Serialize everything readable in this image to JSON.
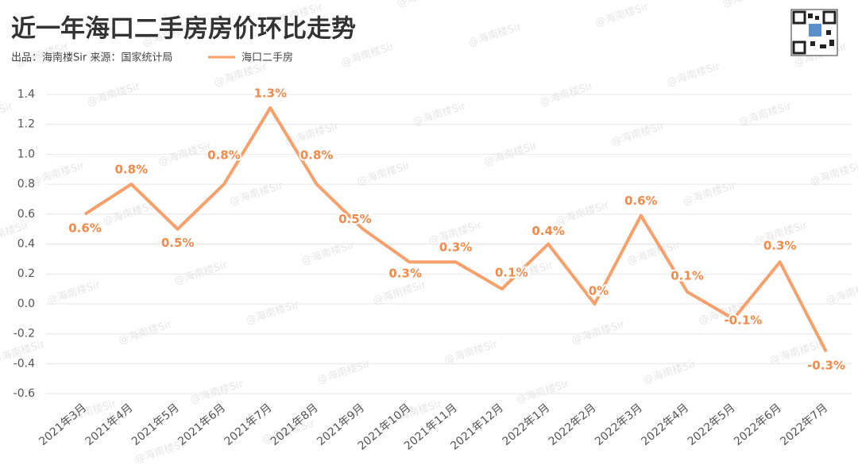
{
  "chart_data": {
    "type": "line",
    "title": "近一年海口二手房房价环比走势",
    "subtitle": "出品：海南楼Sir  来源：国家统计局",
    "watermark": "@海南楼Sir",
    "categories": [
      "2021年3月",
      "2021年4月",
      "2021年5月",
      "2021年6月",
      "2021年7月",
      "2021年8月",
      "2021年9月",
      "2021年10月",
      "2021年11月",
      "2021年12月",
      "2022年1月",
      "2022年2月",
      "2022年3月",
      "2022年4月",
      "2022年5月",
      "2022年6月",
      "2022年7月"
    ],
    "series": [
      {
        "name": "海口二手房",
        "color": "#f7a06b",
        "values": [
          0.6,
          0.8,
          0.5,
          0.8,
          1.31,
          0.8,
          0.5,
          0.28,
          0.28,
          0.1,
          0.4,
          0,
          0.59,
          0.08,
          -0.1,
          0.28,
          -0.32
        ],
        "value_labels": [
          "0.6%",
          "0.8%",
          "0.5%",
          "0.8%",
          "1.3%",
          "0.8%",
          "0.5%",
          "0.3%",
          "0.3%",
          "0.1%",
          "0.4%",
          "0%",
          "0.6%",
          "0.1%",
          "-0.1%",
          "0.3%",
          "-0.3%"
        ]
      }
    ],
    "ylim": [
      -0.6,
      1.4
    ],
    "yticks": [
      -0.6,
      -0.4,
      -0.2,
      {
        "value": 0,
        "label": "0.0"
      },
      0.2,
      0.4,
      0.6,
      0.8,
      {
        "value": 1,
        "label": "1.0"
      },
      1.2,
      1.4
    ],
    "grid": true
  }
}
